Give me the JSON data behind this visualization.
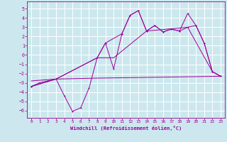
{
  "background_color": "#cce8ee",
  "grid_color": "#ffffff",
  "line_color": "#990099",
  "xlabel": "Windchill (Refroidissement éolien,°C)",
  "xlim": [
    -0.5,
    23.5
  ],
  "ylim": [
    -6.8,
    5.8
  ],
  "yticks": [
    -6,
    -5,
    -4,
    -3,
    -2,
    -1,
    0,
    1,
    2,
    3,
    4,
    5
  ],
  "xticks": [
    0,
    1,
    2,
    3,
    4,
    5,
    6,
    7,
    8,
    9,
    10,
    11,
    12,
    13,
    14,
    15,
    16,
    17,
    18,
    19,
    20,
    21,
    22,
    23
  ],
  "series1": {
    "x": [
      0,
      1,
      2,
      3,
      4,
      5,
      6,
      7,
      8,
      9,
      10,
      11,
      12,
      13,
      14,
      15,
      16,
      17,
      18,
      19,
      20,
      21,
      22,
      23
    ],
    "y": [
      -3.4,
      -3.0,
      -2.8,
      -2.6,
      -4.4,
      -6.1,
      -5.7,
      -3.6,
      -0.3,
      1.3,
      -1.5,
      2.3,
      4.3,
      4.8,
      2.6,
      3.2,
      2.5,
      2.8,
      2.6,
      3.0,
      3.2,
      1.3,
      -1.8,
      -2.3
    ]
  },
  "series2": {
    "x": [
      0,
      3,
      8,
      10,
      14,
      19,
      22,
      23
    ],
    "y": [
      -3.4,
      -2.6,
      -0.3,
      -0.3,
      2.6,
      3.0,
      -1.8,
      -2.3
    ]
  },
  "series3_flat": {
    "x": [
      0,
      3,
      8,
      23
    ],
    "y": [
      -2.8,
      -2.6,
      -2.5,
      -2.3
    ]
  },
  "series4": {
    "x": [
      0,
      3,
      8,
      9,
      11,
      12,
      13,
      14,
      15,
      16,
      17,
      18,
      19,
      20,
      21,
      22,
      23
    ],
    "y": [
      -3.4,
      -2.6,
      -0.3,
      1.3,
      2.3,
      4.3,
      4.8,
      2.6,
      3.2,
      2.5,
      2.8,
      2.6,
      4.5,
      3.2,
      1.3,
      -1.8,
      -2.3
    ]
  }
}
